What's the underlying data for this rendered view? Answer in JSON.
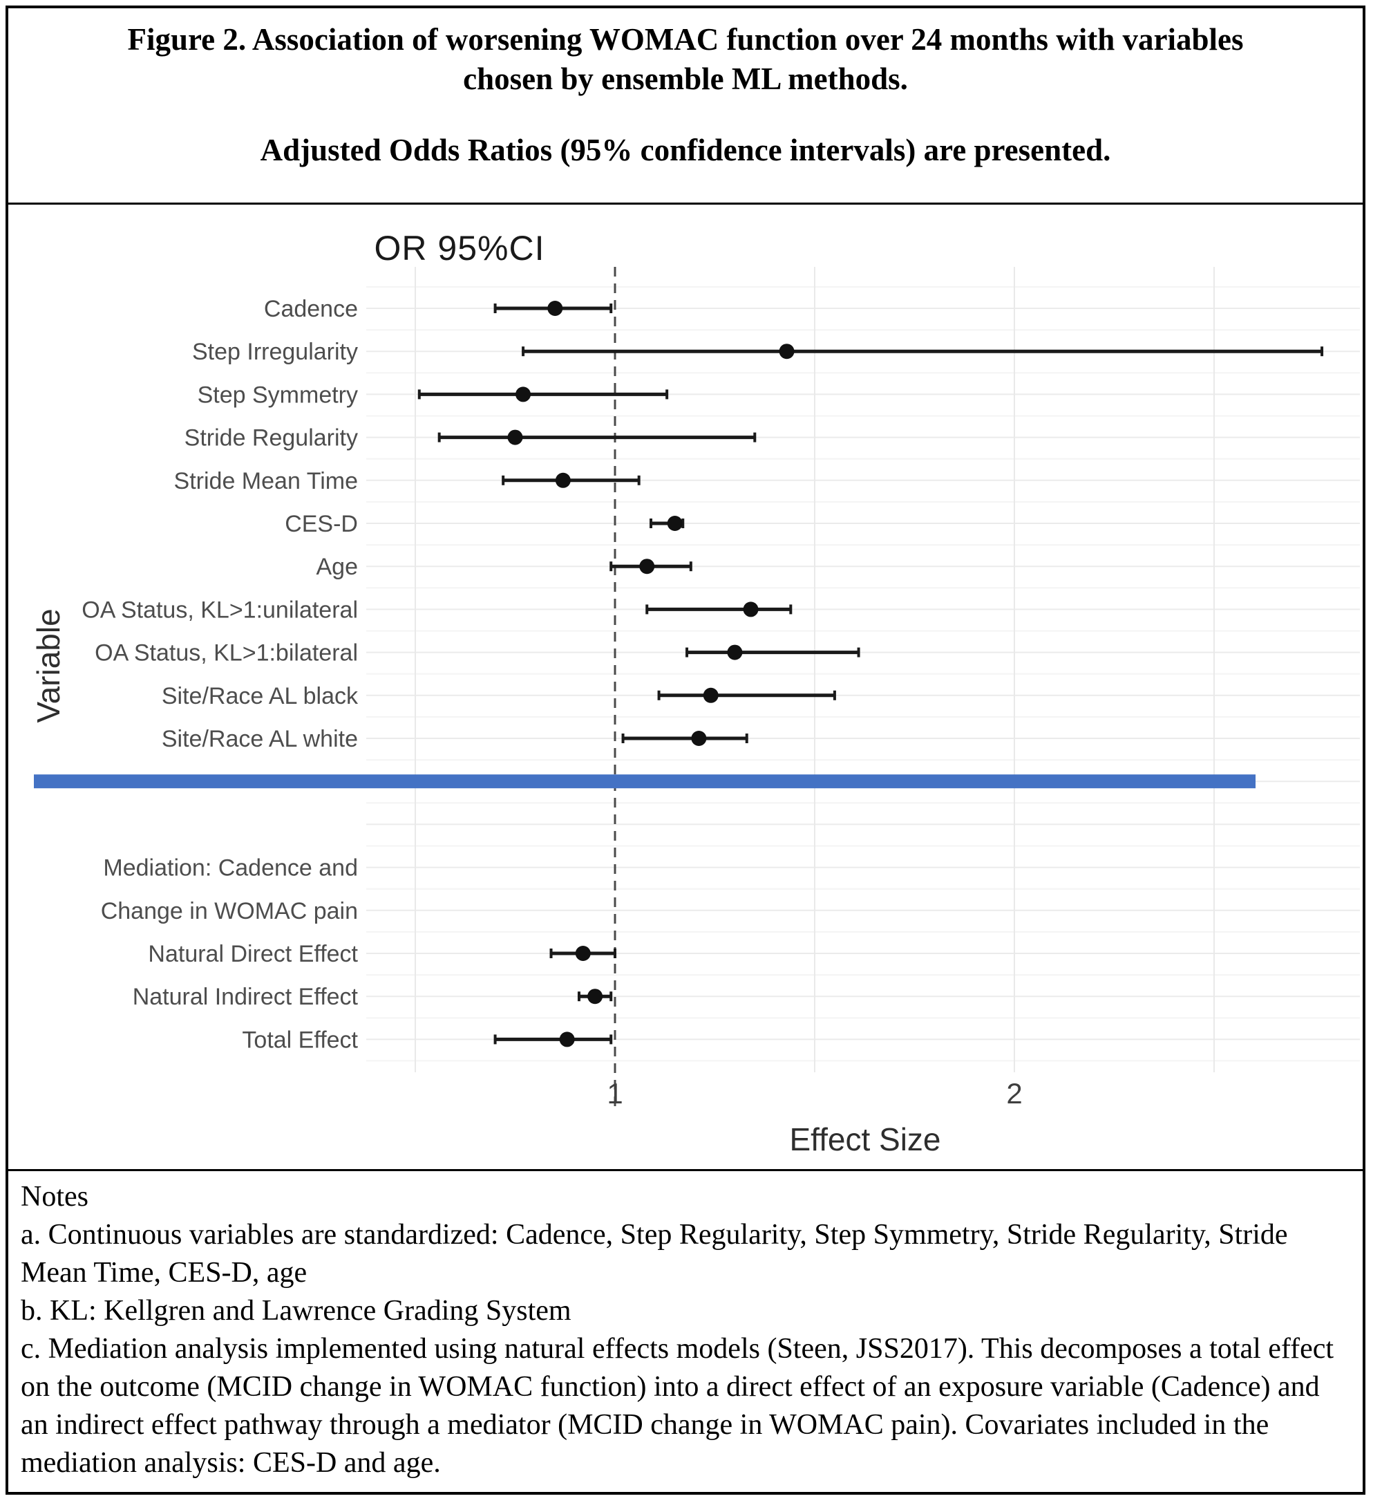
{
  "figure_title": {
    "line1": "Figure 2. Association of worsening WOMAC function over 24 months with variables",
    "line2": "chosen by ensemble ML methods.",
    "line3": "Adjusted Odds Ratios (95% confidence intervals) are presented."
  },
  "chart_data": {
    "type": "forest",
    "title": "OR 95%CI",
    "xlabel": "Effect Size",
    "ylabel": "Variable",
    "x_axis": {
      "scale": "linear",
      "ticks": [
        1,
        2
      ],
      "range": [
        0.35,
        2.85
      ],
      "gridlines": [
        0.5,
        1.5,
        2.0,
        2.5
      ],
      "reference_line": 1
    },
    "divider_color": "#4472C4",
    "point_color": "#111111",
    "rows": [
      {
        "label": "Cadence",
        "or": 0.85,
        "lo": 0.7,
        "hi": 0.99
      },
      {
        "label": "Step Irregularity",
        "or": 1.43,
        "lo": 0.77,
        "hi": 2.77
      },
      {
        "label": "Step Symmetry",
        "or": 0.77,
        "lo": 0.51,
        "hi": 1.13
      },
      {
        "label": "Stride Regularity",
        "or": 0.75,
        "lo": 0.56,
        "hi": 1.35
      },
      {
        "label": "Stride Mean Time",
        "or": 0.87,
        "lo": 0.72,
        "hi": 1.06
      },
      {
        "label": "CES-D",
        "or": 1.15,
        "lo": 1.09,
        "hi": 1.17
      },
      {
        "label": "Age",
        "or": 1.08,
        "lo": 0.99,
        "hi": 1.19
      },
      {
        "label": "OA Status, KL>1:unilateral",
        "or": 1.34,
        "lo": 1.08,
        "hi": 1.44
      },
      {
        "label": "OA Status, KL>1:bilateral",
        "or": 1.3,
        "lo": 1.18,
        "hi": 1.61
      },
      {
        "label": "Site/Race AL black",
        "or": 1.24,
        "lo": 1.11,
        "hi": 1.55
      },
      {
        "label": "Site/Race AL white",
        "or": 1.21,
        "lo": 1.02,
        "hi": 1.33
      },
      {
        "kind": "divider"
      },
      {
        "kind": "spacer"
      },
      {
        "kind": "label",
        "label": "Mediation: Cadence and"
      },
      {
        "kind": "label",
        "label": "Change in WOMAC pain"
      },
      {
        "label": "Natural Direct Effect",
        "or": 0.92,
        "lo": 0.84,
        "hi": 1.0
      },
      {
        "label": "Natural Indirect Effect",
        "or": 0.95,
        "lo": 0.91,
        "hi": 0.99
      },
      {
        "label": "Total Effect",
        "or": 0.88,
        "lo": 0.7,
        "hi": 0.99
      }
    ]
  },
  "notes": {
    "heading": "Notes",
    "items": [
      "a. Continuous variables are standardized: Cadence, Step Regularity, Step Symmetry, Stride Regularity, Stride Mean Time, CES-D, age",
      "b. KL: Kellgren and Lawrence Grading System",
      "c. Mediation analysis implemented using natural effects models (Steen, JSS2017). This decomposes a total effect on the outcome (MCID change in WOMAC function) into a direct effect of an exposure variable (Cadence) and an indirect effect pathway through a mediator (MCID change in WOMAC pain).  Covariates included in the mediation analysis:  CES-D and age."
    ]
  }
}
